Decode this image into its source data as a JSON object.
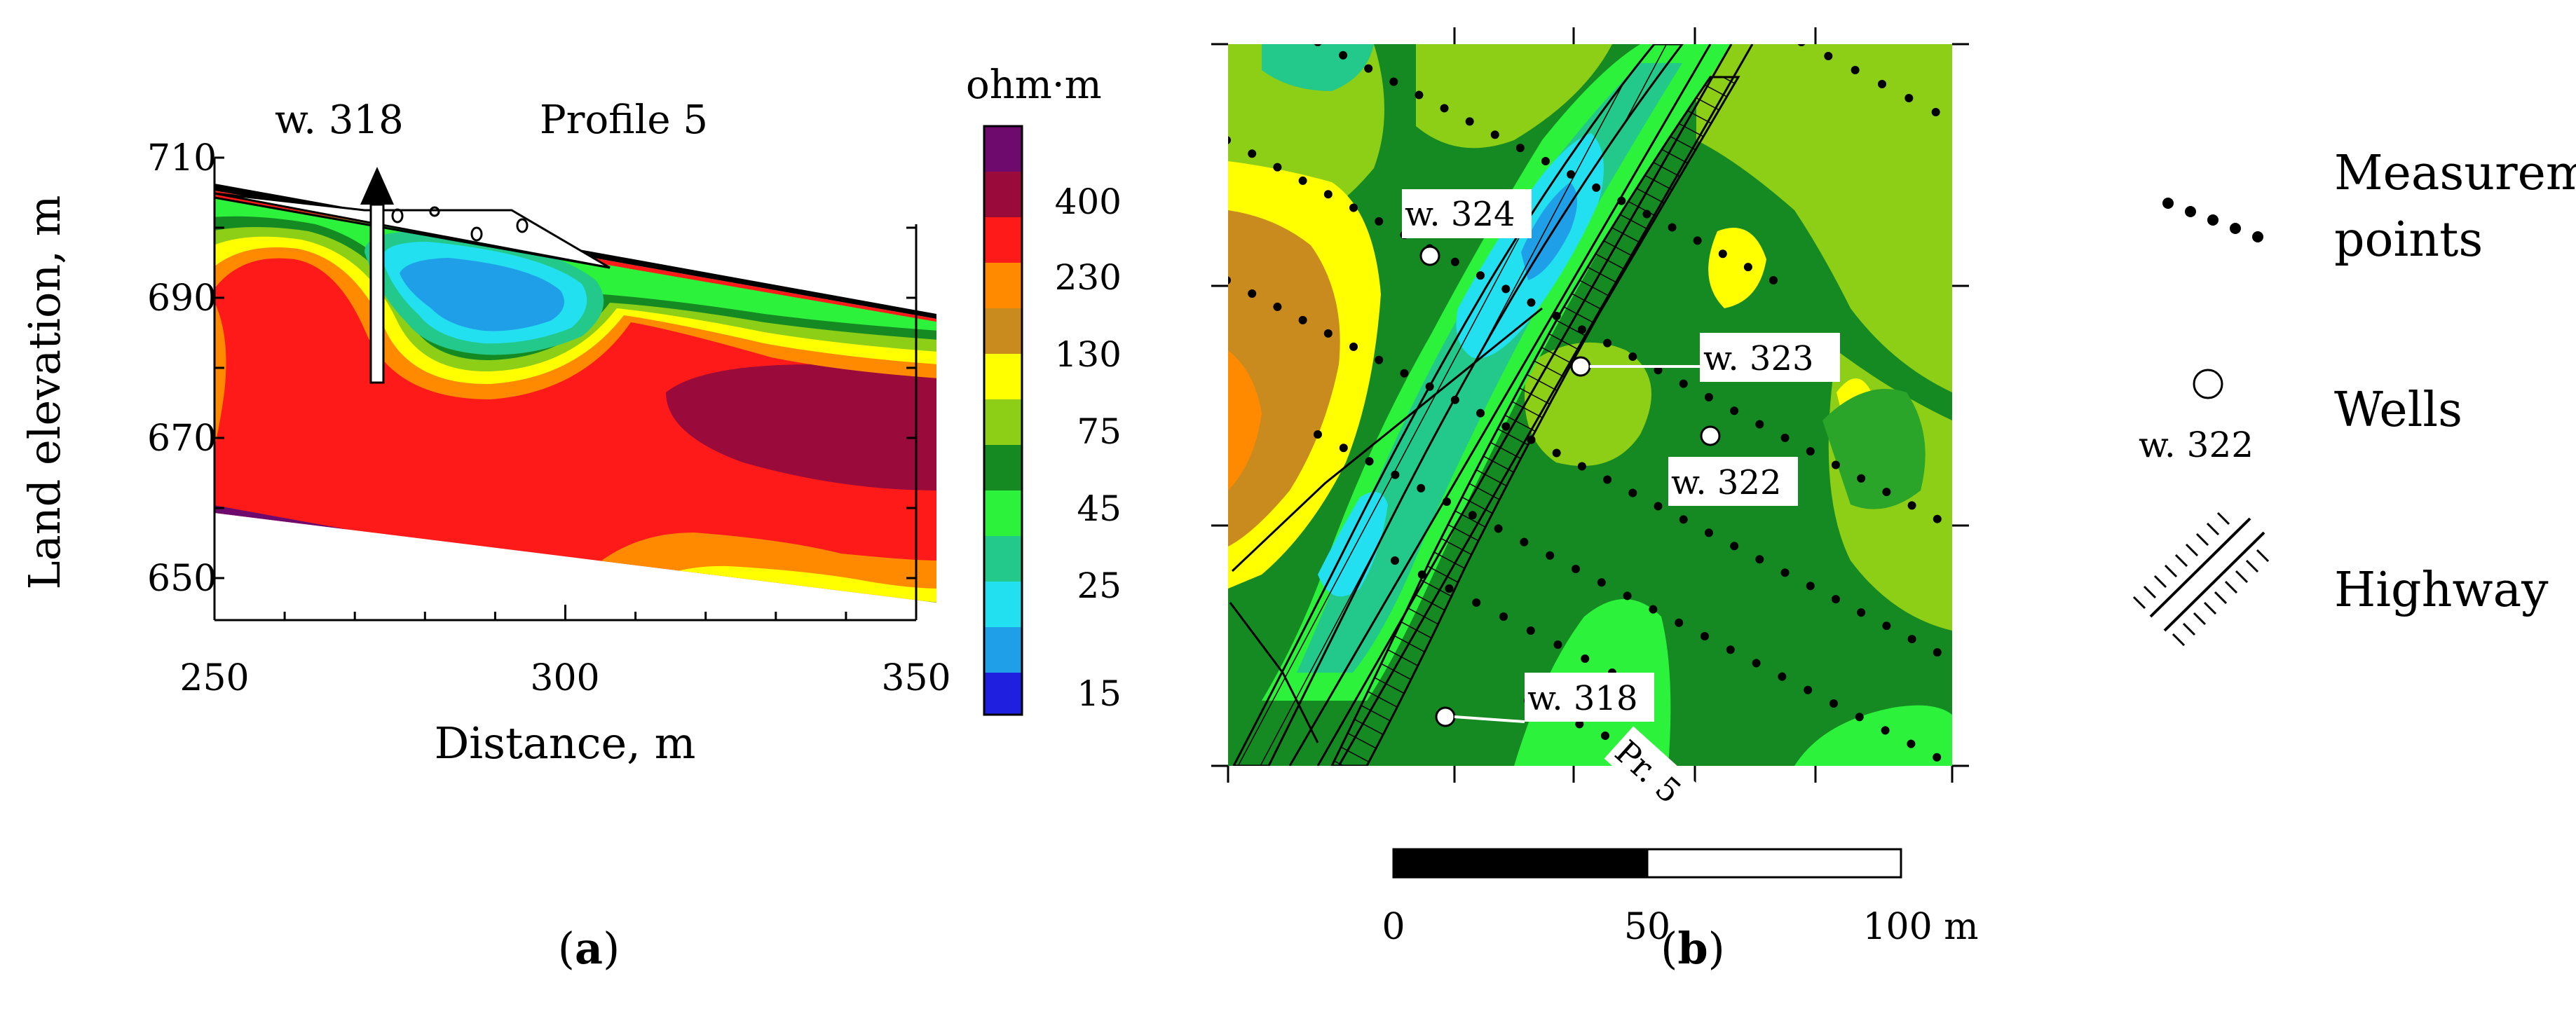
{
  "colors": {
    "c15": "#1f1fe0",
    "c25": "#1f9fe8",
    "c25b": "#22e0f0",
    "c45": "#22c98a",
    "c45b": "#2cf23c",
    "c75": "#158a22",
    "c75b": "#2aa52a",
    "c130": "#8ccf16",
    "c130b": "#ffff00",
    "c230": "#c98a1e",
    "c230b": "#ff8a00",
    "c400": "#ff1a1a",
    "c400b": "#9a0a3a",
    "ctop": "#6e0a6e"
  },
  "chart_data": [
    {
      "panel": "a",
      "type": "heatmap",
      "title": "Profile 5",
      "xlabel": "Distance, m",
      "ylabel": "Land elevation, m",
      "xlim": [
        250,
        350
      ],
      "ylim": [
        645,
        712
      ],
      "x_ticks": [
        "250",
        "300",
        "350"
      ],
      "y_ticks": [
        "710",
        "690",
        "670",
        "650"
      ],
      "well_label": "w. 318",
      "well_distance": 273,
      "colorbar": {
        "unit": "ohm·m",
        "levels": [
          "400",
          "230",
          "130",
          "75",
          "45",
          "25",
          "15"
        ]
      },
      "panel_label": "a"
    },
    {
      "panel": "b",
      "type": "heatmap",
      "title": "",
      "wells": [
        {
          "label": "w. 324"
        },
        {
          "label": "w. 323"
        },
        {
          "label": "w. 322"
        },
        {
          "label": "w. 318"
        }
      ],
      "profile_label": "Pr. 5",
      "scale_bar": {
        "ticks": [
          "0",
          "50",
          "100 m"
        ]
      },
      "legend": [
        {
          "symbol": "dots",
          "label_line1": "Measurement",
          "label_line2": "points"
        },
        {
          "symbol": "circle",
          "label_line1": "Wells",
          "sublabel": "w. 322"
        },
        {
          "symbol": "hatched-lines",
          "label_line1": "Highway"
        }
      ],
      "panel_label": "b"
    }
  ]
}
